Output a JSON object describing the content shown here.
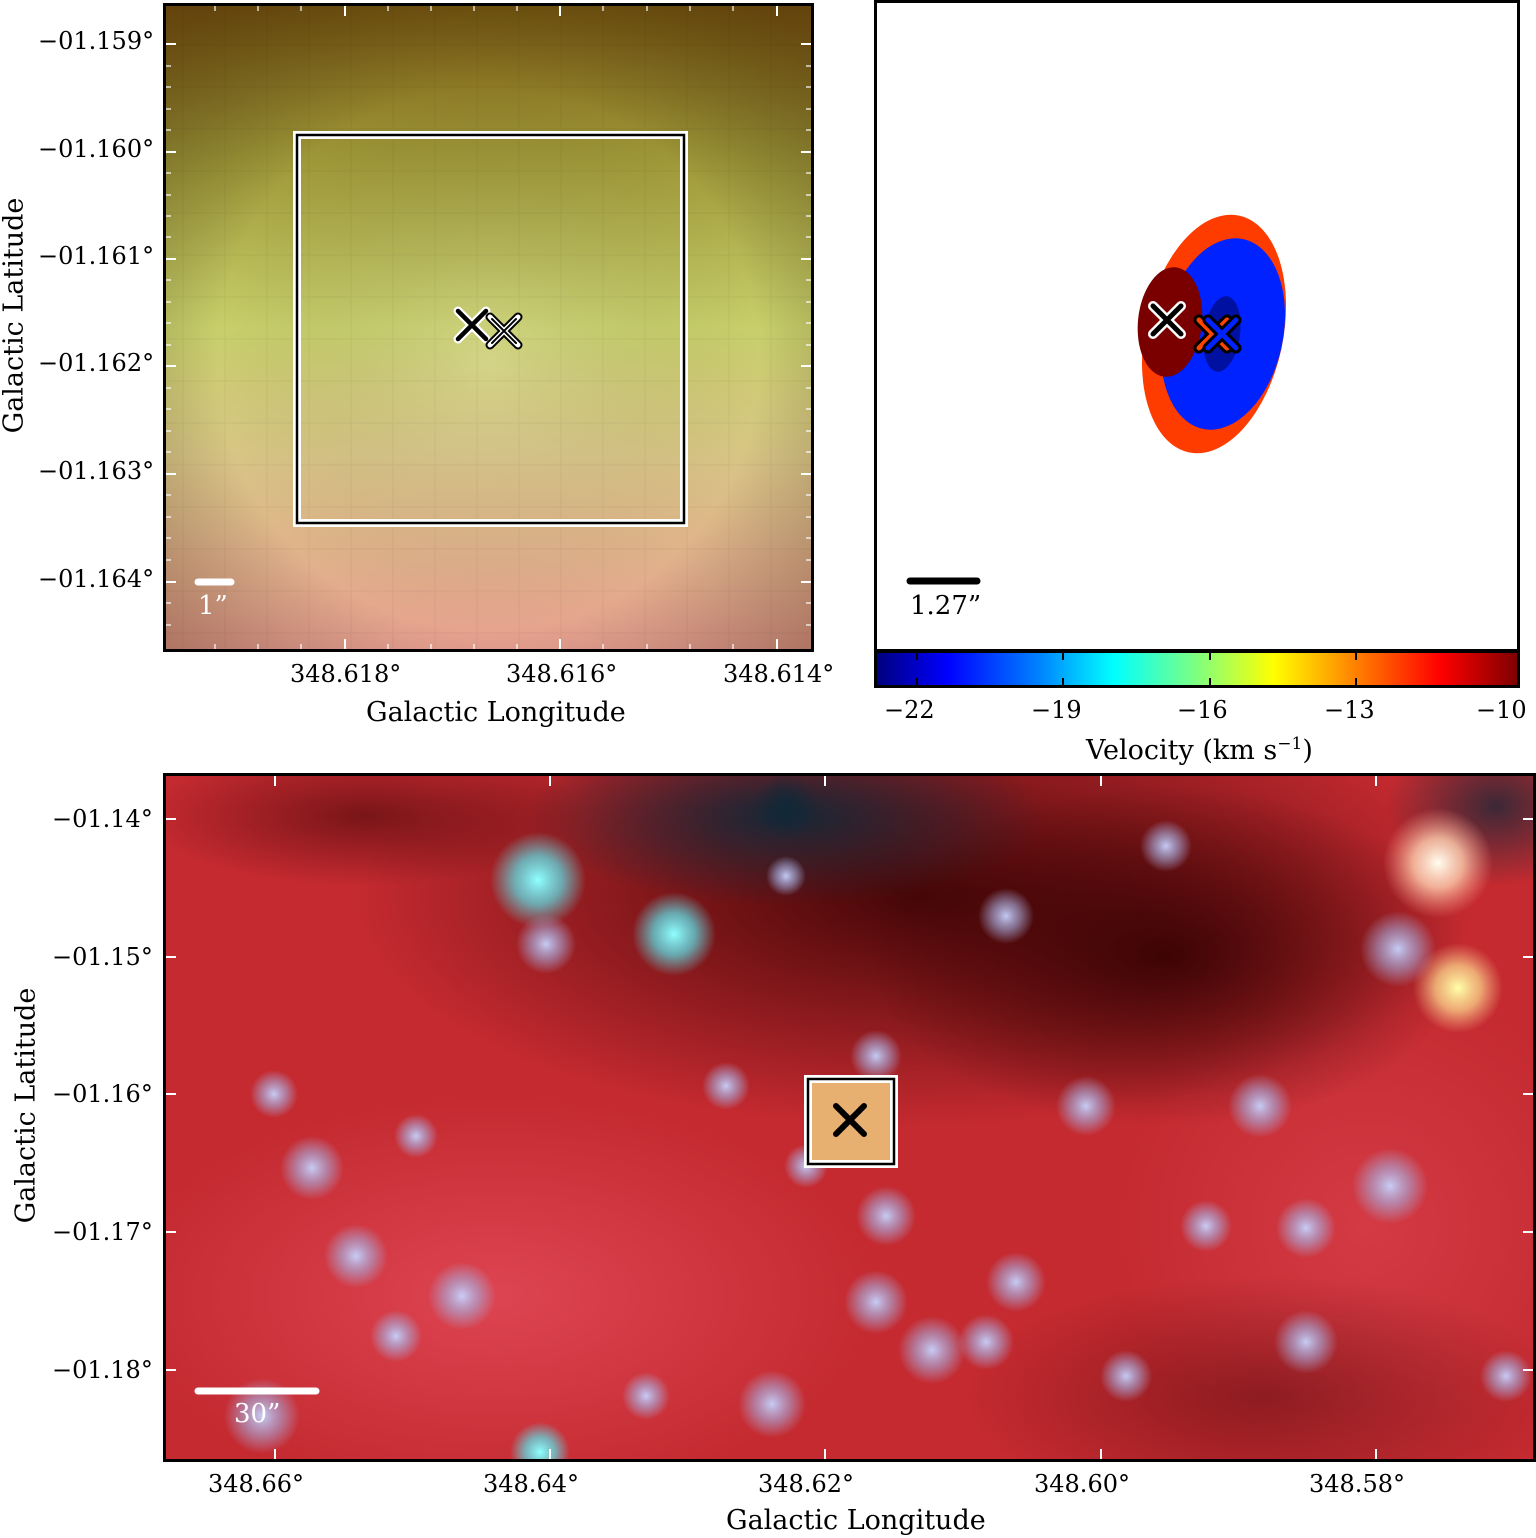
{
  "top_left": {
    "y_axis_label": "Galactic Latitude",
    "x_axis_label": "Galactic Longitude",
    "y_ticks": [
      "−01.159°",
      "−01.160°",
      "−01.161°",
      "−01.162°",
      "−01.163°",
      "−01.164°"
    ],
    "x_ticks": [
      "348.618°",
      "348.616°",
      "348.614°"
    ],
    "scale_bar_label": "1”"
  },
  "top_right": {
    "scale_bar_label": "1.27”",
    "colorbar_ticks": [
      "−22",
      "−19",
      "−16",
      "−13",
      "−10"
    ],
    "colorbar_label": "Velocity (km s",
    "colorbar_label_sup": "−1",
    "colorbar_label_end": ")",
    "colorbar_range": [
      -22.6,
      -9.8
    ]
  },
  "bottom": {
    "y_axis_label": "Galactic Latitude",
    "x_axis_label": "Galactic Longitude",
    "y_ticks": [
      "−01.14°",
      "−01.15°",
      "−01.16°",
      "−01.17°",
      "−01.18°"
    ],
    "x_ticks": [
      "348.66°",
      "348.64°",
      "348.62°",
      "348.60°",
      "348.58°"
    ],
    "scale_bar_label": "30”"
  },
  "colors": {
    "ellipse_outer": "#ff3c00",
    "ellipse_blue": "#0022ff",
    "ellipse_darkred": "#7a0000",
    "ellipse_darkblue": "#0010a0",
    "marker_orange": "#ff4400"
  }
}
